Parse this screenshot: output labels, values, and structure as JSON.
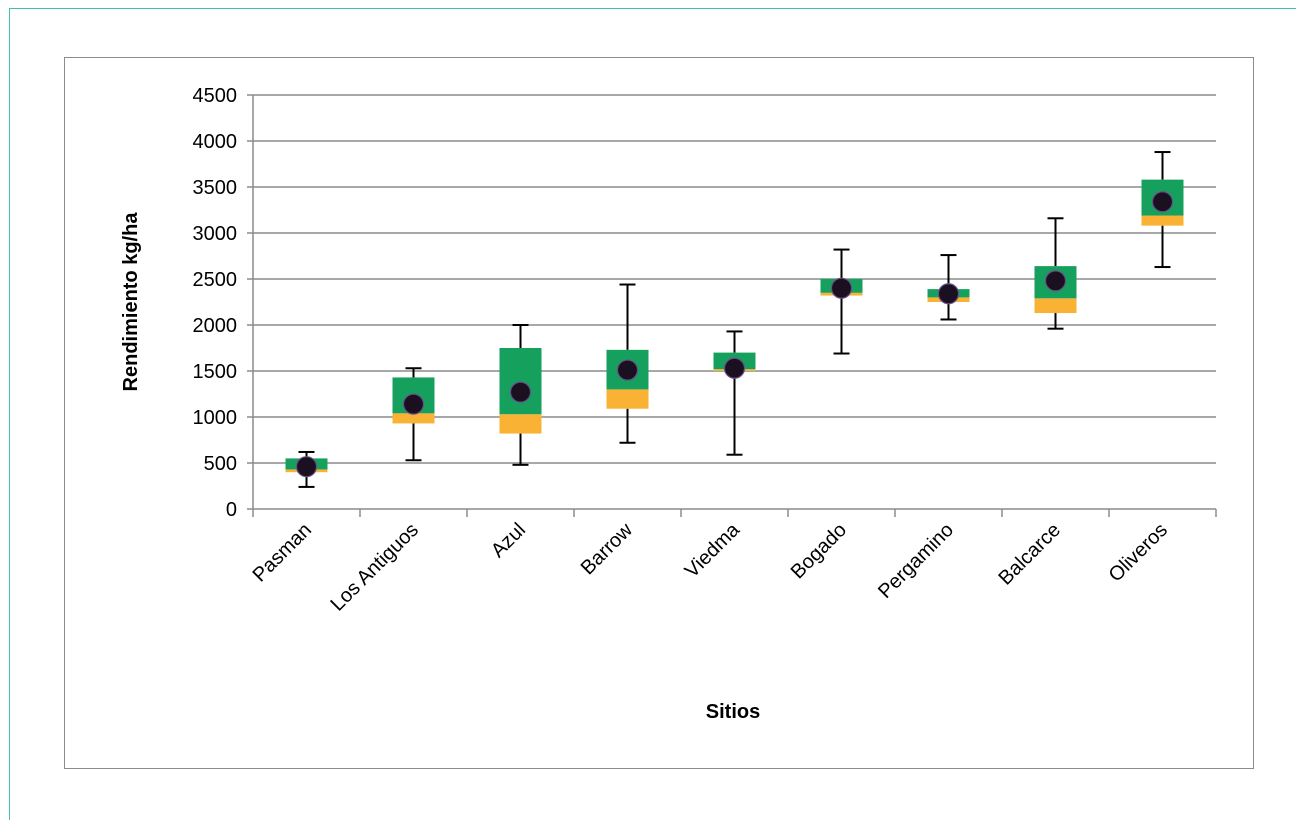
{
  "chart_data": {
    "type": "box",
    "title": "",
    "xlabel": "Sitios",
    "ylabel": "Rendimiento  kg/ha",
    "ylim": [
      0,
      4500
    ],
    "yticks": [
      0,
      500,
      1000,
      1500,
      2000,
      2500,
      3000,
      3500,
      4000,
      4500
    ],
    "grid": true,
    "legend": "none",
    "colors": {
      "lower_box": "#f9b233",
      "upper_box": "#16a05d",
      "mean_marker": "#1a1020",
      "whisker": "#000000",
      "grid": "#8c8c8c"
    },
    "categories": [
      "Pasman",
      "Los Antiguos",
      "Azul",
      "Barrow",
      "Viedma",
      "Bogado",
      "Pergamino",
      "Balcarce",
      "Oliveros"
    ],
    "series": [
      {
        "category": "Pasman",
        "min": 240,
        "q1": 400,
        "median": 430,
        "q3": 550,
        "max": 620,
        "mean": 460
      },
      {
        "category": "Los Antiguos",
        "min": 530,
        "q1": 930,
        "median": 1040,
        "q3": 1430,
        "max": 1530,
        "mean": 1140
      },
      {
        "category": "Azul",
        "min": 480,
        "q1": 820,
        "median": 1030,
        "q3": 1750,
        "max": 2000,
        "mean": 1270
      },
      {
        "category": "Barrow",
        "min": 720,
        "q1": 1090,
        "median": 1300,
        "q3": 1730,
        "max": 2440,
        "mean": 1510
      },
      {
        "category": "Viedma",
        "min": 590,
        "q1": 1500,
        "median": 1520,
        "q3": 1700,
        "max": 1930,
        "mean": 1530
      },
      {
        "category": "Bogado",
        "min": 1690,
        "q1": 2320,
        "median": 2350,
        "q3": 2500,
        "max": 2820,
        "mean": 2400
      },
      {
        "category": "Pergamino",
        "min": 2060,
        "q1": 2250,
        "median": 2300,
        "q3": 2390,
        "max": 2760,
        "mean": 2340
      },
      {
        "category": "Balcarce",
        "min": 1960,
        "q1": 2130,
        "median": 2290,
        "q3": 2640,
        "max": 3160,
        "mean": 2480
      },
      {
        "category": "Oliveros",
        "min": 2630,
        "q1": 3080,
        "median": 3190,
        "q3": 3580,
        "max": 3880,
        "mean": 3340
      }
    ]
  }
}
